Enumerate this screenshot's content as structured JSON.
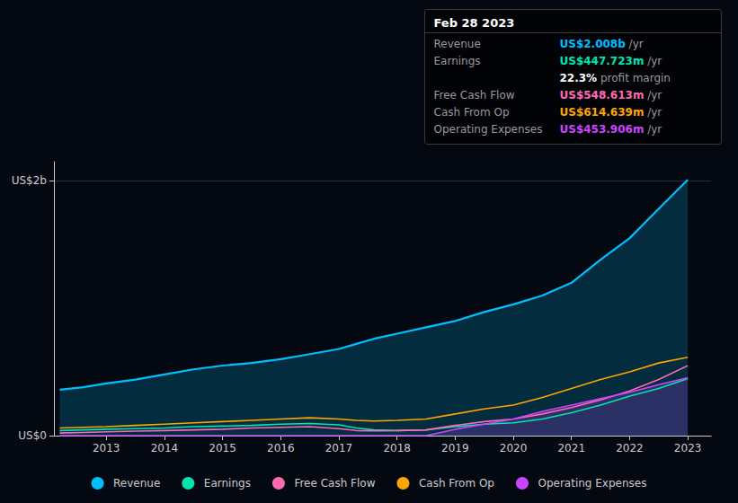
{
  "chart_data": {
    "type": "line",
    "x": [
      2012.2,
      2012.6,
      2013.0,
      2013.5,
      2014.0,
      2014.5,
      2015.0,
      2015.5,
      2016.0,
      2016.5,
      2017.0,
      2017.3,
      2017.6,
      2018.0,
      2018.5,
      2019.0,
      2019.5,
      2020.0,
      2020.5,
      2021.0,
      2021.5,
      2022.0,
      2022.5,
      2023.0
    ],
    "series": [
      {
        "name": "Revenue",
        "color": "#00bfff",
        "type": "area",
        "values": [
          0.36,
          0.38,
          0.41,
          0.44,
          0.48,
          0.52,
          0.55,
          0.57,
          0.6,
          0.64,
          0.68,
          0.72,
          0.76,
          0.8,
          0.85,
          0.9,
          0.97,
          1.03,
          1.1,
          1.2,
          1.38,
          1.55,
          1.78,
          2.008
        ]
      },
      {
        "name": "Earnings",
        "color": "#00e5b0",
        "type": "line",
        "values": [
          0.04,
          0.045,
          0.05,
          0.055,
          0.06,
          0.07,
          0.075,
          0.08,
          0.09,
          0.095,
          0.085,
          0.06,
          0.045,
          0.04,
          0.045,
          0.07,
          0.09,
          0.1,
          0.13,
          0.18,
          0.24,
          0.31,
          0.37,
          0.448
        ]
      },
      {
        "name": "Free Cash Flow",
        "color": "#ff69b4",
        "type": "line",
        "values": [
          0.02,
          0.025,
          0.03,
          0.035,
          0.04,
          0.045,
          0.05,
          0.06,
          0.065,
          0.07,
          0.055,
          0.04,
          0.038,
          0.04,
          0.045,
          0.08,
          0.11,
          0.13,
          0.17,
          0.22,
          0.28,
          0.35,
          0.44,
          0.549
        ]
      },
      {
        "name": "Cash From Op",
        "color": "#ffa500",
        "type": "line",
        "values": [
          0.06,
          0.065,
          0.07,
          0.08,
          0.09,
          0.1,
          0.11,
          0.12,
          0.13,
          0.14,
          0.13,
          0.12,
          0.115,
          0.12,
          0.13,
          0.17,
          0.21,
          0.24,
          0.3,
          0.37,
          0.44,
          0.5,
          0.57,
          0.615
        ]
      },
      {
        "name": "Operating Expenses",
        "color": "#cc44ff",
        "type": "area",
        "values": [
          0.0,
          0.0,
          0.0,
          0.0,
          0.0,
          0.0,
          0.0,
          0.0,
          0.0,
          0.0,
          0.0,
          0.0,
          0.0,
          0.0,
          0.0,
          0.05,
          0.09,
          0.13,
          0.19,
          0.24,
          0.29,
          0.34,
          0.4,
          0.454
        ]
      }
    ],
    "xlim": [
      2012.1,
      2023.4
    ],
    "xticks": [
      2013,
      2014,
      2015,
      2016,
      2017,
      2018,
      2019,
      2020,
      2021,
      2022,
      2023
    ],
    "ylim": [
      0,
      2.15
    ],
    "yticks": [
      {
        "value": 0,
        "label": "US$0"
      },
      {
        "value": 2,
        "label": "US$2b"
      }
    ],
    "grid": true,
    "legend": "bottom",
    "annotations": {
      "title": "Feb 28 2023",
      "rows": [
        {
          "label": "Revenue",
          "value": "US$2.008b",
          "suffix": "/yr",
          "color": "#00bfff"
        },
        {
          "label": "Earnings",
          "value": "US$447.723m",
          "suffix": "/yr",
          "color": "#00e5b0"
        },
        {
          "value": "22.3%",
          "suffix": "profit margin",
          "color": "#ffffff"
        },
        {
          "label": "Free Cash Flow",
          "value": "US$548.613m",
          "suffix": "/yr",
          "color": "#ff69b4"
        },
        {
          "label": "Cash From Op",
          "value": "US$614.639m",
          "suffix": "/yr",
          "color": "#ffa500"
        },
        {
          "label": "Operating Expenses",
          "value": "US$453.906m",
          "suffix": "/yr",
          "color": "#cc44ff"
        }
      ]
    }
  }
}
